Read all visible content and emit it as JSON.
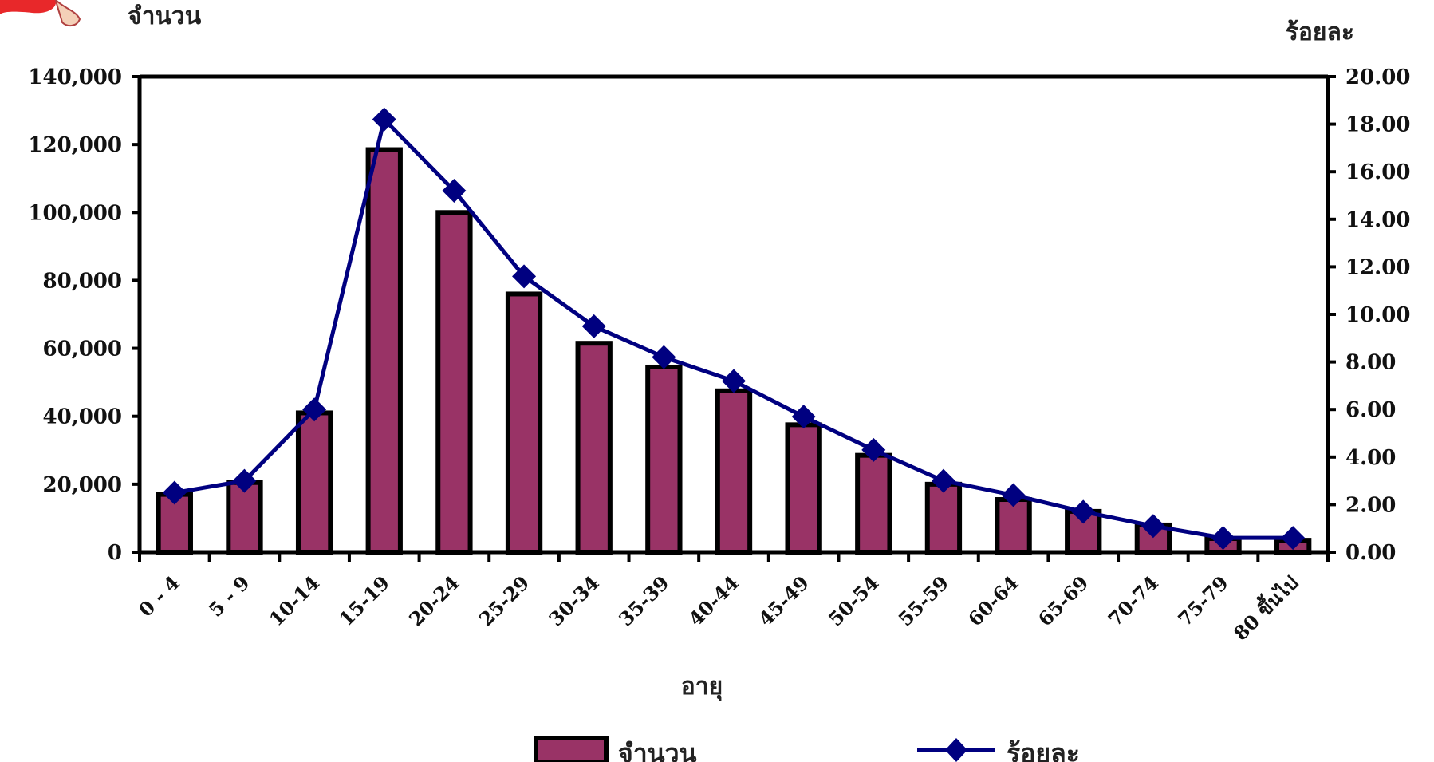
{
  "chart_data": {
    "type": "bar",
    "title": "",
    "xlabel": "อายุ",
    "ylabel_left": "จำนวน",
    "ylabel_right": "ร้อยละ",
    "categories": [
      "0 - 4",
      "5 - 9",
      "10-14",
      "15-19",
      "20-24",
      "25-29",
      "30-34",
      "35-39",
      "40-44",
      "45-49",
      "50-54",
      "55-59",
      "60-64",
      "65-69",
      "70-74",
      "75-79",
      "80 ขึ้นไป"
    ],
    "series": [
      {
        "name": "จำนวน",
        "axis": "left",
        "kind": "bar",
        "color": "#993366",
        "values": [
          17000,
          20500,
          41000,
          118500,
          100000,
          76000,
          61500,
          54500,
          47500,
          37500,
          28500,
          20000,
          15500,
          12000,
          8000,
          4000,
          3500
        ]
      },
      {
        "name": "ร้อยละ",
        "axis": "right",
        "kind": "line",
        "color": "#000080",
        "values": [
          2.5,
          3.0,
          6.0,
          18.2,
          15.2,
          11.6,
          9.5,
          8.2,
          7.2,
          5.7,
          4.3,
          3.0,
          2.4,
          1.7,
          1.1,
          0.6,
          0.6
        ]
      }
    ],
    "ylim_left": [
      0,
      140000
    ],
    "ylim_right": [
      0,
      20
    ],
    "yticks_left": [
      "0",
      "20,000",
      "40,000",
      "60,000",
      "80,000",
      "100,000",
      "120,000",
      "140,000"
    ],
    "yticks_right": [
      "0.00",
      "2.00",
      "4.00",
      "6.00",
      "8.00",
      "10.00",
      "12.00",
      "14.00",
      "16.00",
      "18.00",
      "20.00"
    ],
    "grid": false,
    "legend_position": "bottom"
  }
}
